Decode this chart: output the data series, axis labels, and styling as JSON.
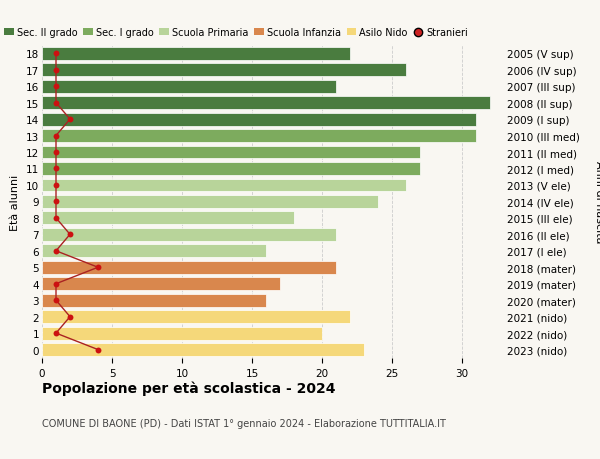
{
  "ages": [
    18,
    17,
    16,
    15,
    14,
    13,
    12,
    11,
    10,
    9,
    8,
    7,
    6,
    5,
    4,
    3,
    2,
    1,
    0
  ],
  "right_labels": [
    "2005 (V sup)",
    "2006 (IV sup)",
    "2007 (III sup)",
    "2008 (II sup)",
    "2009 (I sup)",
    "2010 (III med)",
    "2011 (II med)",
    "2012 (I med)",
    "2013 (V ele)",
    "2014 (IV ele)",
    "2015 (III ele)",
    "2016 (II ele)",
    "2017 (I ele)",
    "2018 (mater)",
    "2019 (mater)",
    "2020 (mater)",
    "2021 (nido)",
    "2022 (nido)",
    "2023 (nido)"
  ],
  "bar_values": [
    22,
    26,
    21,
    32,
    31,
    31,
    27,
    27,
    26,
    24,
    18,
    21,
    16,
    21,
    17,
    16,
    22,
    20,
    23
  ],
  "bar_colors": [
    "#4a7c3f",
    "#4a7c3f",
    "#4a7c3f",
    "#4a7c3f",
    "#4a7c3f",
    "#7dab5e",
    "#7dab5e",
    "#7dab5e",
    "#b8d49a",
    "#b8d49a",
    "#b8d49a",
    "#b8d49a",
    "#b8d49a",
    "#d9874d",
    "#d9874d",
    "#d9874d",
    "#f5d87a",
    "#f5d87a",
    "#f5d87a"
  ],
  "stranieri_values": [
    1,
    1,
    1,
    1,
    2,
    1,
    1,
    1,
    1,
    1,
    1,
    2,
    1,
    4,
    1,
    1,
    2,
    1,
    4
  ],
  "title": "Popolazione per età scolastica - 2024",
  "subtitle": "COMUNE DI BAONE (PD) - Dati ISTAT 1° gennaio 2024 - Elaborazione TUTTITALIA.IT",
  "ylabel": "Età alunni",
  "right_ylabel": "Anni di nascita",
  "legend_labels": [
    "Sec. II grado",
    "Sec. I grado",
    "Scuola Primaria",
    "Scuola Infanzia",
    "Asilo Nido",
    "Stranieri"
  ],
  "legend_colors": [
    "#4a7c3f",
    "#7dab5e",
    "#b8d49a",
    "#d9874d",
    "#f5d87a",
    "#cc2222"
  ],
  "xlim": [
    0,
    33
  ],
  "xticks": [
    0,
    5,
    10,
    15,
    20,
    25,
    30
  ],
  "background_color": "#f9f7f2",
  "bar_height": 0.78,
  "grid_color": "#cccccc",
  "font_size_ticks": 7.5,
  "font_size_legend": 7,
  "font_size_title": 10,
  "font_size_subtitle": 7,
  "font_size_ylabel": 8
}
